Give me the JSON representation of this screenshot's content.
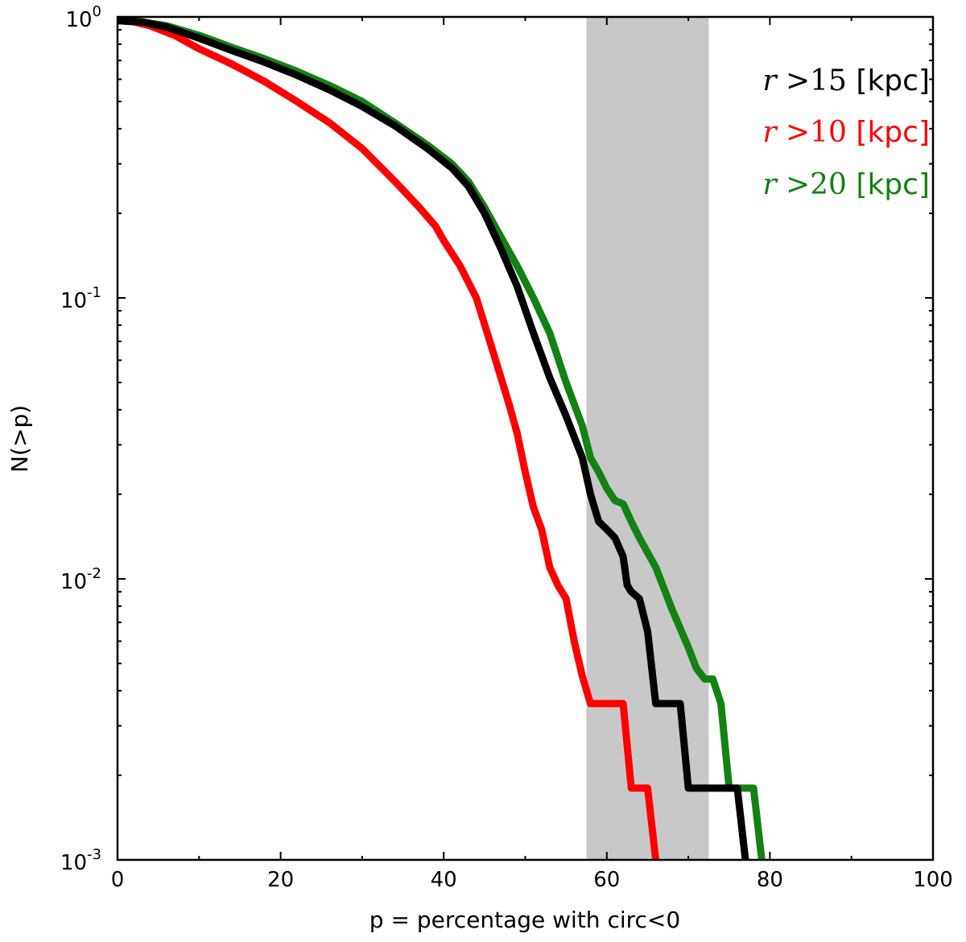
{
  "chart_data": {
    "type": "line",
    "title": "",
    "xlabel": "p = percentage with circ<0",
    "ylabel": "N(>p)",
    "xlim": [
      0,
      100
    ],
    "ylim": [
      0.001,
      1
    ],
    "yscale": "log",
    "x_ticks": [
      0,
      20,
      40,
      60,
      80,
      100
    ],
    "x_tick_labels": [
      "0",
      "20",
      "40",
      "60",
      "80",
      "100"
    ],
    "y_ticks": [
      {
        "value": 1,
        "base": "10",
        "exp": "0"
      },
      {
        "value": 0.1,
        "base": "10",
        "exp": "-1"
      },
      {
        "value": 0.01,
        "base": "10",
        "exp": "-2"
      },
      {
        "value": 0.001,
        "base": "10",
        "exp": "-3"
      }
    ],
    "shaded_band": {
      "x_start": 57.5,
      "x_end": 72.5,
      "color": "#c8c8c8"
    },
    "legend_position": "top-right",
    "series": [
      {
        "name": "r >15 [kpc]",
        "label_var": "r",
        "label_op": ">15",
        "label_unit": "[kpc]",
        "color": "#000000",
        "points": [
          [
            0,
            0.97
          ],
          [
            3,
            0.96
          ],
          [
            6,
            0.92
          ],
          [
            10,
            0.84
          ],
          [
            14,
            0.76
          ],
          [
            18,
            0.69
          ],
          [
            22,
            0.62
          ],
          [
            26,
            0.55
          ],
          [
            30,
            0.48
          ],
          [
            34,
            0.41
          ],
          [
            38,
            0.34
          ],
          [
            41,
            0.29
          ],
          [
            43,
            0.25
          ],
          [
            45,
            0.2
          ],
          [
            47,
            0.15
          ],
          [
            49,
            0.11
          ],
          [
            51,
            0.075
          ],
          [
            53,
            0.052
          ],
          [
            55,
            0.038
          ],
          [
            57,
            0.027
          ],
          [
            58,
            0.02
          ],
          [
            59,
            0.016
          ],
          [
            60,
            0.015
          ],
          [
            61,
            0.014
          ],
          [
            62,
            0.012
          ],
          [
            62.5,
            0.0095
          ],
          [
            63,
            0.009
          ],
          [
            64,
            0.0085
          ],
          [
            65,
            0.0065
          ],
          [
            66,
            0.0036
          ],
          [
            69,
            0.0036
          ],
          [
            70,
            0.0018
          ],
          [
            76,
            0.0018
          ],
          [
            77,
            0.001
          ]
        ]
      },
      {
        "name": "r >10 [kpc]",
        "label_var": "r",
        "label_op": ">10",
        "label_unit": "[kpc]",
        "color": "#ff0000",
        "points": [
          [
            0,
            0.97
          ],
          [
            2,
            0.96
          ],
          [
            4,
            0.93
          ],
          [
            7,
            0.86
          ],
          [
            10,
            0.77
          ],
          [
            14,
            0.68
          ],
          [
            18,
            0.59
          ],
          [
            22,
            0.5
          ],
          [
            26,
            0.42
          ],
          [
            30,
            0.34
          ],
          [
            34,
            0.26
          ],
          [
            37,
            0.21
          ],
          [
            39,
            0.18
          ],
          [
            40,
            0.16
          ],
          [
            42,
            0.13
          ],
          [
            44,
            0.1
          ],
          [
            46,
            0.065
          ],
          [
            48,
            0.042
          ],
          [
            49,
            0.033
          ],
          [
            50,
            0.024
          ],
          [
            51,
            0.018
          ],
          [
            52,
            0.015
          ],
          [
            53,
            0.011
          ],
          [
            54,
            0.0095
          ],
          [
            55,
            0.0085
          ],
          [
            56,
            0.006
          ],
          [
            57,
            0.0045
          ],
          [
            58,
            0.0036
          ],
          [
            62,
            0.0036
          ],
          [
            63,
            0.0018
          ],
          [
            65,
            0.0018
          ],
          [
            66,
            0.001
          ]
        ]
      },
      {
        "name": "r >20 [kpc]",
        "label_var": "r",
        "label_op": ">20",
        "label_unit": "[kpc]",
        "color": "#128212",
        "points": [
          [
            0,
            0.97
          ],
          [
            3,
            0.96
          ],
          [
            6,
            0.93
          ],
          [
            10,
            0.86
          ],
          [
            14,
            0.78
          ],
          [
            18,
            0.71
          ],
          [
            22,
            0.64
          ],
          [
            26,
            0.57
          ],
          [
            30,
            0.5
          ],
          [
            34,
            0.42
          ],
          [
            38,
            0.35
          ],
          [
            41,
            0.3
          ],
          [
            43,
            0.26
          ],
          [
            45,
            0.21
          ],
          [
            47,
            0.165
          ],
          [
            49,
            0.13
          ],
          [
            51,
            0.1
          ],
          [
            53,
            0.075
          ],
          [
            55,
            0.05
          ],
          [
            57,
            0.035
          ],
          [
            58,
            0.027
          ],
          [
            59,
            0.024
          ],
          [
            60,
            0.021
          ],
          [
            61,
            0.019
          ],
          [
            62,
            0.0185
          ],
          [
            63,
            0.016
          ],
          [
            64,
            0.014
          ],
          [
            66,
            0.011
          ],
          [
            68,
            0.0078
          ],
          [
            70,
            0.0057
          ],
          [
            71,
            0.0048
          ],
          [
            72,
            0.0044
          ],
          [
            73,
            0.0044
          ],
          [
            74,
            0.0036
          ],
          [
            75,
            0.0018
          ],
          [
            78,
            0.0018
          ],
          [
            79,
            0.001
          ]
        ]
      }
    ]
  }
}
